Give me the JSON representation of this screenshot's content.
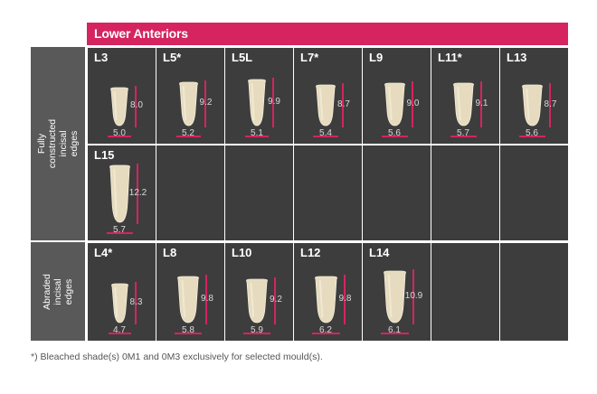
{
  "header": {
    "title": "Lower Anteriors"
  },
  "sections": [
    {
      "label": "Fully constructed\nincisal edges"
    },
    {
      "label": "Abraded\nincisal edges"
    }
  ],
  "colors": {
    "accent": "#d5245f",
    "cell": "#3d3d3d",
    "side": "#595959",
    "tooth": "#e7dcc0"
  },
  "moulds": [
    {
      "name": "L3",
      "height": "8.0",
      "width": "5.0"
    },
    {
      "name": "L5*",
      "height": "9.2",
      "width": "5.2"
    },
    {
      "name": "L5L",
      "height": "9.9",
      "width": "5.1"
    },
    {
      "name": "L7*",
      "height": "8.7",
      "width": "5.4"
    },
    {
      "name": "L9",
      "height": "9.0",
      "width": "5.6"
    },
    {
      "name": "L11*",
      "height": "9.1",
      "width": "5.7"
    },
    {
      "name": "L13",
      "height": "8.7",
      "width": "5.6"
    },
    {
      "name": "L15",
      "height": "12.2",
      "width": "5.7"
    },
    {
      "name": "L4*",
      "height": "8.3",
      "width": "4.7"
    },
    {
      "name": "L8",
      "height": "9.8",
      "width": "5.8"
    },
    {
      "name": "L10",
      "height": "9.2",
      "width": "5.9"
    },
    {
      "name": "L12",
      "height": "9.8",
      "width": "6.2"
    },
    {
      "name": "L14",
      "height": "10.9",
      "width": "6.1"
    }
  ],
  "footnote": "*) Bleached shade(s) 0M1 and 0M3 exclusively for selected mould(s)."
}
